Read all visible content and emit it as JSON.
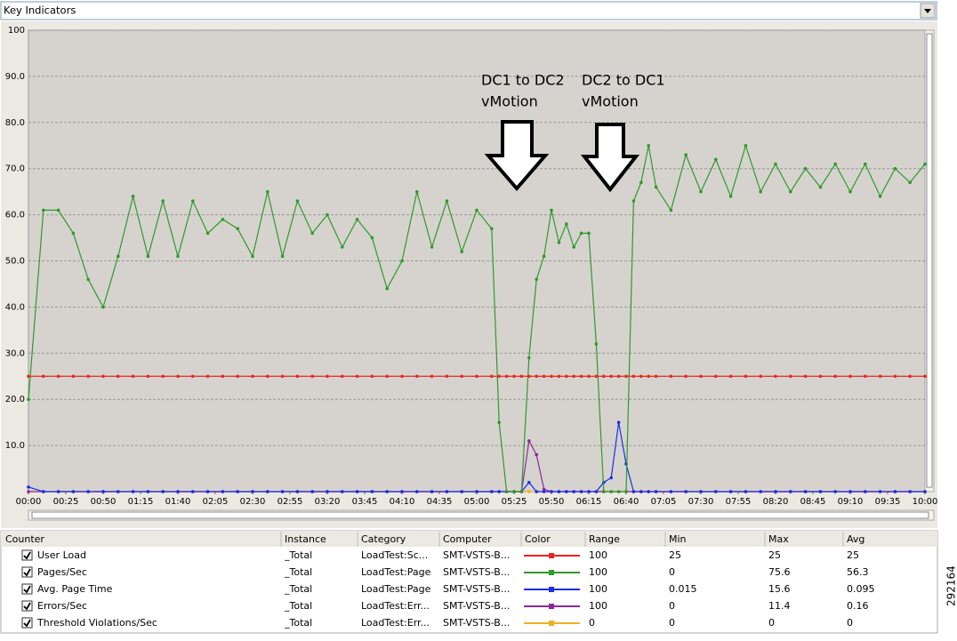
{
  "header": {
    "title": "Key Indicators"
  },
  "side_label": "292164",
  "chart_data": {
    "type": "line",
    "annotations": [
      [
        "DC1 to DC2",
        "vMotion"
      ],
      [
        "DC2 to DC1",
        "vMotion"
      ]
    ],
    "x": [
      0,
      10,
      20,
      30,
      40,
      50,
      60,
      70,
      80,
      90,
      100,
      110,
      120,
      130,
      140,
      150,
      160,
      170,
      180,
      190,
      200,
      210,
      220,
      230,
      240,
      250,
      260,
      270,
      280,
      290,
      300,
      310,
      315,
      320,
      325,
      330,
      335,
      340,
      345,
      350,
      355,
      360,
      365,
      370,
      375,
      380,
      385,
      390,
      395,
      400,
      405,
      410,
      415,
      420,
      430,
      440,
      450,
      460,
      470,
      480,
      490,
      500,
      510,
      520,
      530,
      540,
      550,
      560,
      570,
      580,
      590,
      600
    ],
    "series": [
      {
        "name": "User Load",
        "color": "#e8251e",
        "values": [
          25,
          25,
          25,
          25,
          25,
          25,
          25,
          25,
          25,
          25,
          25,
          25,
          25,
          25,
          25,
          25,
          25,
          25,
          25,
          25,
          25,
          25,
          25,
          25,
          25,
          25,
          25,
          25,
          25,
          25,
          25,
          25,
          25,
          25,
          25,
          25,
          25,
          25,
          25,
          25,
          25,
          25,
          25,
          25,
          25,
          25,
          25,
          25,
          25,
          25,
          25,
          25,
          25,
          25,
          25,
          25,
          25,
          25,
          25,
          25,
          25,
          25,
          25,
          25,
          25,
          25,
          25,
          25,
          25,
          25,
          25,
          25
        ]
      },
      {
        "name": "Pages/Sec",
        "color": "#2e9a2a",
        "values": [
          20,
          61,
          61,
          56,
          46,
          40,
          51,
          64,
          51,
          63,
          51,
          63,
          56,
          59,
          57,
          51,
          65,
          51,
          63,
          56,
          60,
          53,
          59,
          55,
          44,
          50,
          65,
          53,
          63,
          52,
          61,
          57,
          15,
          0,
          0,
          0,
          29,
          46,
          51,
          61,
          54,
          58,
          53,
          56,
          56,
          32,
          0,
          0,
          0,
          0,
          63,
          67,
          75,
          66,
          61,
          73,
          65,
          72,
          64,
          75,
          65,
          71,
          65,
          70,
          66,
          71,
          65,
          71,
          64,
          70,
          67,
          71
        ]
      },
      {
        "name": "Avg. Page Time",
        "color": "#1a2ee8",
        "values": [
          1,
          0,
          0,
          0,
          0,
          0,
          0,
          0,
          0,
          0,
          0,
          0,
          0,
          0,
          0,
          0,
          0,
          0,
          0,
          0,
          0,
          0,
          0,
          0,
          0,
          0,
          0,
          0,
          0,
          0,
          0,
          0,
          0,
          0,
          0,
          0,
          2,
          0,
          0,
          0,
          0,
          0,
          0,
          0,
          0,
          0,
          2,
          3,
          15,
          6,
          0,
          0,
          0,
          0,
          0,
          0,
          0,
          0,
          0,
          0,
          0,
          0,
          0,
          0,
          0,
          0,
          0,
          0,
          0,
          0,
          0,
          0
        ]
      },
      {
        "name": "Errors/Sec",
        "color": "#8a2a9a",
        "values": [
          0,
          0,
          0,
          0,
          0,
          0,
          0,
          0,
          0,
          0,
          0,
          0,
          0,
          0,
          0,
          0,
          0,
          0,
          0,
          0,
          0,
          0,
          0,
          0,
          0,
          0,
          0,
          0,
          0,
          0,
          0,
          0,
          0,
          0,
          0,
          0,
          11,
          8,
          0.5,
          0,
          0,
          0,
          0,
          0,
          0,
          0,
          0,
          0,
          0,
          0,
          0,
          0,
          0,
          0,
          0,
          0,
          0,
          0,
          0,
          0,
          0,
          0,
          0,
          0,
          0,
          0,
          0,
          0,
          0,
          0,
          0,
          0
        ]
      },
      {
        "name": "Threshold Violations/Sec",
        "color": "#f0b020",
        "values": [
          0,
          0,
          0,
          0,
          0,
          0,
          0,
          0,
          0,
          0,
          0,
          0,
          0,
          0,
          0,
          0,
          0,
          0,
          0,
          0,
          0,
          0,
          0,
          0,
          0,
          0,
          0,
          0,
          0,
          0,
          0,
          0,
          0,
          0,
          0,
          0,
          0,
          0,
          0,
          0,
          0,
          0,
          0,
          0,
          0,
          0,
          0,
          0,
          0,
          0,
          0,
          0,
          0,
          0,
          0,
          0,
          0,
          0,
          0,
          0,
          0,
          0,
          0,
          0,
          0,
          0,
          0,
          0,
          0,
          0,
          0,
          0
        ]
      }
    ],
    "xlim": [
      0,
      600
    ],
    "xticks": [
      {
        "value": 0,
        "label": "00:00"
      },
      {
        "value": 25,
        "label": "00:25"
      },
      {
        "value": 50,
        "label": "00:50"
      },
      {
        "value": 75,
        "label": "01:15"
      },
      {
        "value": 100,
        "label": "01:40"
      },
      {
        "value": 125,
        "label": "02:05"
      },
      {
        "value": 150,
        "label": "02:30"
      },
      {
        "value": 175,
        "label": "02:55"
      },
      {
        "value": 200,
        "label": "03:20"
      },
      {
        "value": 225,
        "label": "03:45"
      },
      {
        "value": 250,
        "label": "04:10"
      },
      {
        "value": 275,
        "label": "04:35"
      },
      {
        "value": 300,
        "label": "05:00"
      },
      {
        "value": 325,
        "label": "05:25"
      },
      {
        "value": 350,
        "label": "05:50"
      },
      {
        "value": 375,
        "label": "06:15"
      },
      {
        "value": 400,
        "label": "06:40"
      },
      {
        "value": 425,
        "label": "07:05"
      },
      {
        "value": 450,
        "label": "07:30"
      },
      {
        "value": 475,
        "label": "07:55"
      },
      {
        "value": 500,
        "label": "08:20"
      },
      {
        "value": 525,
        "label": "08:45"
      },
      {
        "value": 550,
        "label": "09:10"
      },
      {
        "value": 575,
        "label": "09:35"
      },
      {
        "value": 600,
        "label": "10:00"
      }
    ],
    "ylim": [
      0,
      100
    ],
    "yticks": [
      {
        "value": 10,
        "label": "10.0"
      },
      {
        "value": 20,
        "label": "20.0"
      },
      {
        "value": 30,
        "label": "30.0"
      },
      {
        "value": 40,
        "label": "40.0"
      },
      {
        "value": 50,
        "label": "50.0"
      },
      {
        "value": 60,
        "label": "60.0"
      },
      {
        "value": 70,
        "label": "70.0"
      },
      {
        "value": 80,
        "label": "80.0"
      },
      {
        "value": 90,
        "label": "90.0"
      },
      100
    ],
    "grid": true
  },
  "table": {
    "columns": [
      "Counter",
      "Instance",
      "Category",
      "Computer",
      "Color",
      "Range",
      "Min",
      "Max",
      "Avg"
    ],
    "rows": [
      [
        "_Total",
        "LoadTest:Sc...",
        "SMT-VSTS-B...",
        100,
        25,
        25,
        25
      ],
      [
        "_Total",
        "LoadTest:Page",
        "SMT-VSTS-B...",
        100,
        0,
        75.6,
        56.3
      ],
      [
        "_Total",
        "LoadTest:Page",
        "SMT-VSTS-B...",
        100,
        0.015,
        15.6,
        0.095
      ],
      [
        "_Total",
        "LoadTest:Err...",
        "SMT-VSTS-B...",
        100,
        0,
        11.4,
        0.16
      ],
      [
        "_Total",
        "LoadTest:Err...",
        "SMT-VSTS-B...",
        0,
        0,
        0,
        0
      ]
    ]
  }
}
